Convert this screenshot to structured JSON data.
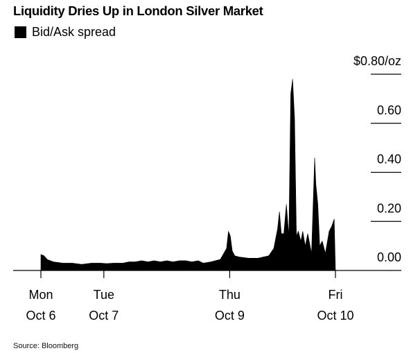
{
  "chart_data": {
    "type": "area",
    "title": "Liquidity Dries Up in London Silver Market",
    "series": [
      {
        "name": "Bid/Ask spread",
        "color": "#000000",
        "points": [
          [
            0.0,
            0.065
          ],
          [
            0.05,
            0.06
          ],
          [
            0.1,
            0.045
          ],
          [
            0.2,
            0.035
          ],
          [
            0.35,
            0.03
          ],
          [
            0.5,
            0.03
          ],
          [
            0.65,
            0.025
          ],
          [
            0.8,
            0.03
          ],
          [
            0.95,
            0.03
          ],
          [
            1.05,
            0.028
          ],
          [
            1.15,
            0.03
          ],
          [
            1.3,
            0.03
          ],
          [
            1.4,
            0.035
          ],
          [
            1.5,
            0.035
          ],
          [
            1.6,
            0.04
          ],
          [
            1.7,
            0.035
          ],
          [
            1.8,
            0.04
          ],
          [
            1.9,
            0.035
          ],
          [
            2.0,
            0.04
          ],
          [
            2.1,
            0.035
          ],
          [
            2.2,
            0.04
          ],
          [
            2.3,
            0.04
          ],
          [
            2.4,
            0.035
          ],
          [
            2.5,
            0.04
          ],
          [
            2.58,
            0.03
          ],
          [
            2.7,
            0.035
          ],
          [
            2.85,
            0.045
          ],
          [
            2.95,
            0.09
          ],
          [
            2.98,
            0.16
          ],
          [
            3.01,
            0.14
          ],
          [
            3.04,
            0.08
          ],
          [
            3.08,
            0.06
          ],
          [
            3.15,
            0.055
          ],
          [
            3.3,
            0.05
          ],
          [
            3.45,
            0.05
          ],
          [
            3.62,
            0.06
          ],
          [
            3.7,
            0.09
          ],
          [
            3.76,
            0.17
          ],
          [
            3.79,
            0.24
          ],
          [
            3.82,
            0.15
          ],
          [
            3.86,
            0.15
          ],
          [
            3.9,
            0.27
          ],
          [
            3.94,
            0.14
          ],
          [
            3.97,
            0.72
          ],
          [
            4.0,
            0.78
          ],
          [
            4.03,
            0.62
          ],
          [
            4.06,
            0.14
          ],
          [
            4.09,
            0.16
          ],
          [
            4.13,
            0.12
          ],
          [
            4.16,
            0.16
          ],
          [
            4.2,
            0.1
          ],
          [
            4.24,
            0.15
          ],
          [
            4.3,
            0.07
          ],
          [
            4.35,
            0.46
          ],
          [
            4.37,
            0.35
          ],
          [
            4.4,
            0.27
          ],
          [
            4.43,
            0.1
          ],
          [
            4.47,
            0.12
          ],
          [
            4.52,
            0.07
          ],
          [
            4.58,
            0.16
          ],
          [
            4.62,
            0.18
          ],
          [
            4.66,
            0.21
          ],
          [
            4.68,
            0.0
          ]
        ]
      }
    ],
    "xticks": [
      {
        "label1": "Mon",
        "label2": "Oct 6",
        "pos": 0.0
      },
      {
        "label1": "Tue",
        "label2": "Oct 7",
        "pos": 1.0
      },
      {
        "label1": "Thu",
        "label2": "Oct 9",
        "pos": 3.0
      },
      {
        "label1": "Fri",
        "label2": "Oct 10",
        "pos": 4.68
      }
    ],
    "yticks": [
      {
        "value": 0.8,
        "label": "$0.80/oz"
      },
      {
        "value": 0.6,
        "label": "0.60"
      },
      {
        "value": 0.4,
        "label": "0.40"
      },
      {
        "value": 0.2,
        "label": "0.20"
      },
      {
        "value": 0.0,
        "label": "0.00"
      }
    ],
    "ylim": [
      0,
      0.8
    ],
    "xlim": [
      0,
      4.68
    ],
    "grid": "y",
    "legend_position": "top-left",
    "source": "Source: Bloomberg"
  }
}
